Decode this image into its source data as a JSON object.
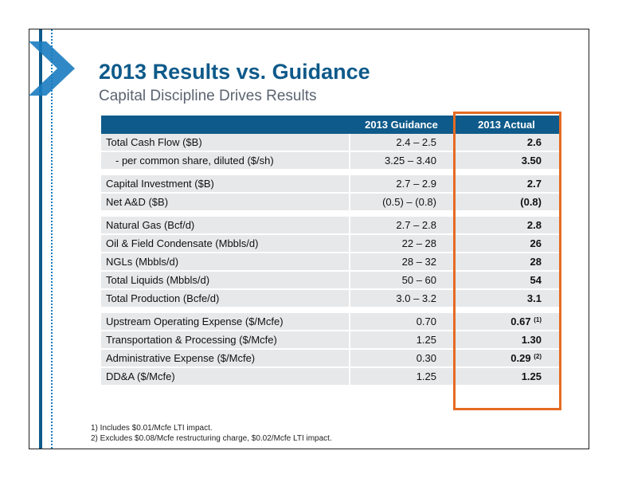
{
  "title": "2013 Results vs. Guidance",
  "subtitle": "Capital Discipline Drives Results",
  "table": {
    "headers": [
      "",
      "2013 Guidance",
      "2013 Actual"
    ],
    "groups": [
      [
        {
          "label": "Total Cash Flow ($B)",
          "guidance": "2.4 – 2.5",
          "actual": "2.6",
          "note": ""
        },
        {
          "label": "- per common share, diluted ($/sh)",
          "guidance": "3.25 – 3.40",
          "actual": "3.50",
          "note": ""
        }
      ],
      [
        {
          "label": "Capital Investment ($B)",
          "guidance": "2.7 – 2.9",
          "actual": "2.7",
          "note": ""
        },
        {
          "label": "Net A&D ($B)",
          "guidance": "(0.5) – (0.8)",
          "actual": "(0.8)",
          "note": ""
        }
      ],
      [
        {
          "label": "Natural Gas (Bcf/d)",
          "guidance": "2.7 – 2.8",
          "actual": "2.8",
          "note": ""
        },
        {
          "label": "Oil & Field Condensate (Mbbls/d)",
          "guidance": "22 – 28",
          "actual": "26",
          "note": ""
        },
        {
          "label": "NGLs (Mbbls/d)",
          "guidance": "28 – 32",
          "actual": "28",
          "note": ""
        },
        {
          "label": "Total Liquids (Mbbls/d)",
          "guidance": "50 – 60",
          "actual": "54",
          "note": ""
        },
        {
          "label": "Total Production (Bcfe/d)",
          "guidance": "3.0 – 3.2",
          "actual": "3.1",
          "note": ""
        }
      ],
      [
        {
          "label": "Upstream Operating Expense ($/Mcfe)",
          "guidance": "0.70",
          "actual": "0.67",
          "note": "(1)"
        },
        {
          "label": "Transportation & Processing ($/Mcfe)",
          "guidance": "1.25",
          "actual": "1.30",
          "note": ""
        },
        {
          "label": "Administrative Expense ($/Mcfe)",
          "guidance": "0.30",
          "actual": "0.29",
          "note": "(2)"
        },
        {
          "label": "DD&A ($/Mcfe)",
          "guidance": "1.25",
          "actual": "1.25",
          "note": ""
        }
      ]
    ]
  },
  "footnotes": [
    "1) Includes $0.01/Mcfe LTI impact.",
    "2) Excludes $0.08/Mcfe restructuring charge, $0.02/Mcfe LTI impact."
  ],
  "colors": {
    "brand_blue": "#0e5a8a",
    "highlight_orange": "#e56b22",
    "row_gray": "#e7e8ea"
  },
  "icons": {
    "logo": "chevron-logo-icon"
  }
}
